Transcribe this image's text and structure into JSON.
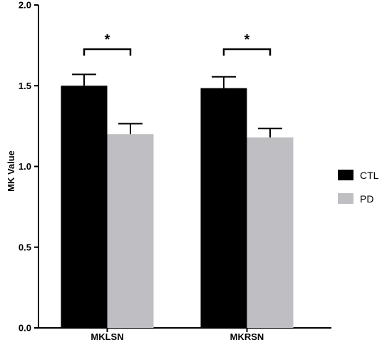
{
  "chart_data": {
    "type": "bar",
    "title": "",
    "xlabel": "",
    "ylabel": "MK Value",
    "ylim": [
      0,
      2.0
    ],
    "yticks": [
      "0.0",
      "0.5",
      "1.0",
      "1.5",
      "2.0"
    ],
    "categories": [
      "MKLSN",
      "MKRSN"
    ],
    "series": [
      {
        "name": "CTL",
        "values": [
          1.5,
          1.485
        ],
        "error": [
          0.07,
          0.07
        ],
        "color": "#000000"
      },
      {
        "name": "PD",
        "values": [
          1.2,
          1.18
        ],
        "error": [
          0.065,
          0.055
        ],
        "color": "#bfbfc3"
      }
    ],
    "significance": [
      "*",
      "*"
    ],
    "grid": false,
    "legend_position": "right"
  }
}
